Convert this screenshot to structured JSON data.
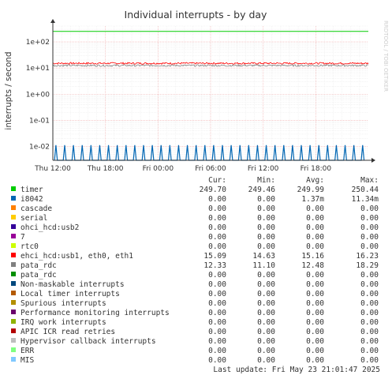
{
  "chart_data": {
    "type": "line",
    "title": "Individual interrupts - by day",
    "ylabel": "interrupts / second",
    "watermark": "RRDTOOL / TOBI OETIKER",
    "y_scale": "log",
    "ylim": [
      0.003,
      400
    ],
    "y_ticks": [
      {
        "value": 100,
        "label": "1e+02"
      },
      {
        "value": 10,
        "label": "1e+01"
      },
      {
        "value": 1,
        "label": "1e+00"
      },
      {
        "value": 0.1,
        "label": "1e-01"
      },
      {
        "value": 0.01,
        "label": "1e-02"
      }
    ],
    "x_range_hours": [
      0,
      36
    ],
    "x_ticks": [
      {
        "hour": 0,
        "label": "Thu 12:00"
      },
      {
        "hour": 6,
        "label": "Thu 18:00"
      },
      {
        "hour": 12,
        "label": "Fri 00:00"
      },
      {
        "hour": 18,
        "label": "Fri 06:00"
      },
      {
        "hour": 24,
        "label": "Fri 12:00"
      },
      {
        "hour": 30,
        "label": "Fri 18:00"
      }
    ],
    "grid": true,
    "legend_headers": {
      "cur": "Cur:",
      "min": "Min:",
      "avg": "Avg:",
      "max": "Max:"
    },
    "series": [
      {
        "name": "timer",
        "color": "#00cc00",
        "cur": "249.70",
        "min": "249.46",
        "avg": "249.99",
        "max": "250.44",
        "level": 249.99
      },
      {
        "name": "i8042",
        "color": "#0066b3",
        "cur": "0.00",
        "min": "0.00",
        "avg": "1.37m",
        "max": "11.34m",
        "level": 0.01134,
        "spiky": true
      },
      {
        "name": "cascade",
        "color": "#ff8000",
        "cur": "0.00",
        "min": "0.00",
        "avg": "0.00",
        "max": "0.00"
      },
      {
        "name": "serial",
        "color": "#ffcc00",
        "cur": "0.00",
        "min": "0.00",
        "avg": "0.00",
        "max": "0.00"
      },
      {
        "name": "ohci_hcd:usb2",
        "color": "#330099",
        "cur": "0.00",
        "min": "0.00",
        "avg": "0.00",
        "max": "0.00"
      },
      {
        "name": "7",
        "color": "#990099",
        "cur": "0.00",
        "min": "0.00",
        "avg": "0.00",
        "max": "0.00"
      },
      {
        "name": "rtc0",
        "color": "#ccff00",
        "cur": "0.00",
        "min": "0.00",
        "avg": "0.00",
        "max": "0.00"
      },
      {
        "name": "ehci_hcd:usb1, eth0, eth1",
        "color": "#ff0000",
        "cur": "15.09",
        "min": "14.63",
        "avg": "15.16",
        "max": "16.23",
        "level": 15.16,
        "noisy": true
      },
      {
        "name": "pata_rdc",
        "color": "#808080",
        "cur": "12.33",
        "min": "11.10",
        "avg": "12.48",
        "max": "18.29",
        "level": 12.48,
        "noisy": true
      },
      {
        "name": "pata_rdc",
        "color": "#008f00",
        "cur": "0.00",
        "min": "0.00",
        "avg": "0.00",
        "max": "0.00"
      },
      {
        "name": "Non-maskable interrupts",
        "color": "#00487d",
        "cur": "0.00",
        "min": "0.00",
        "avg": "0.00",
        "max": "0.00"
      },
      {
        "name": "Local timer interrupts",
        "color": "#b35a00",
        "cur": "0.00",
        "min": "0.00",
        "avg": "0.00",
        "max": "0.00"
      },
      {
        "name": "Spurious interrupts",
        "color": "#b38f00",
        "cur": "0.00",
        "min": "0.00",
        "avg": "0.00",
        "max": "0.00"
      },
      {
        "name": "Performance monitoring interrupts",
        "color": "#6b006b",
        "cur": "0.00",
        "min": "0.00",
        "avg": "0.00",
        "max": "0.00"
      },
      {
        "name": "IRQ work interrupts",
        "color": "#8fb300",
        "cur": "0.00",
        "min": "0.00",
        "avg": "0.00",
        "max": "0.00"
      },
      {
        "name": "APIC ICR read retries",
        "color": "#b30000",
        "cur": "0.00",
        "min": "0.00",
        "avg": "0.00",
        "max": "0.00"
      },
      {
        "name": "Hypervisor callback interrupts",
        "color": "#bebebe",
        "cur": "0.00",
        "min": "0.00",
        "avg": "0.00",
        "max": "0.00"
      },
      {
        "name": "ERR",
        "color": "#80ff80",
        "cur": "0.00",
        "min": "0.00",
        "avg": "0.00",
        "max": "0.00"
      },
      {
        "name": "MIS",
        "color": "#80c9ff",
        "cur": "0.00",
        "min": "0.00",
        "avg": "0.00",
        "max": "0.00"
      }
    ],
    "last_update": "Last update: Fri May 23 21:01:47 2025"
  }
}
